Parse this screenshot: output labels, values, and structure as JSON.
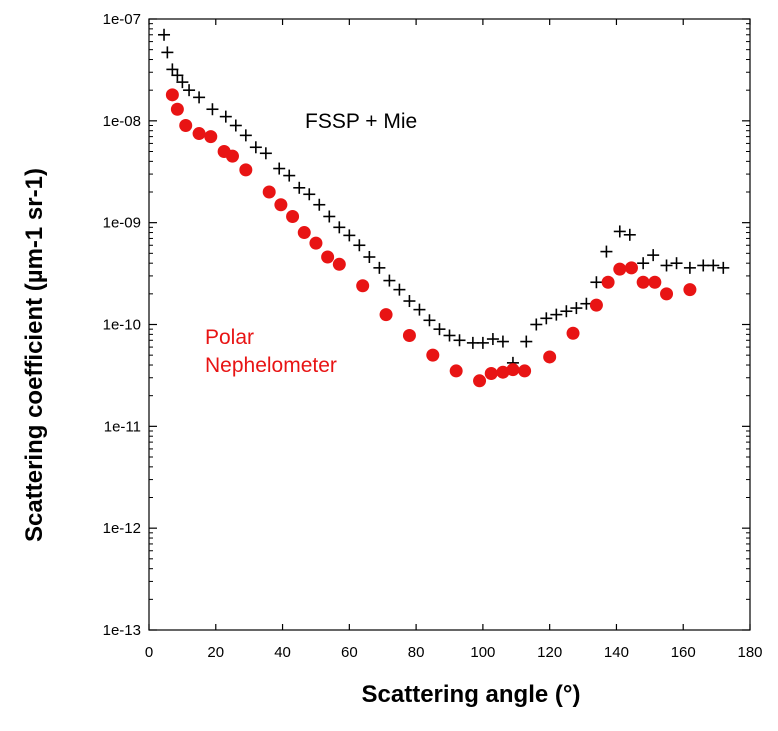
{
  "chart_data": {
    "type": "scatter",
    "xlabel": "Scattering angle (°)",
    "ylabel": "Scattering coefficient (µm-1 sr-1)",
    "xlim": [
      0,
      180
    ],
    "ylim": [
      1e-13,
      1e-07
    ],
    "y_scale": "log",
    "x_ticks": [
      "0",
      "20",
      "40",
      "60",
      "80",
      "100",
      "120",
      "140",
      "160",
      "180"
    ],
    "y_ticks": [
      "1e-13",
      "1e-12",
      "1e-11",
      "1e-10",
      "1e-09",
      "1e-08",
      "1e-07"
    ],
    "grid": false,
    "series": [
      {
        "name": "FSSP + Mie",
        "marker": "plus",
        "color": "#000000",
        "points": [
          [
            4.5,
            7e-08
          ],
          [
            5.5,
            4.7e-08
          ],
          [
            7,
            3.2e-08
          ],
          [
            8.5,
            2.8e-08
          ],
          [
            10,
            2.4e-08
          ],
          [
            12,
            2e-08
          ],
          [
            15,
            1.7e-08
          ],
          [
            19,
            1.3e-08
          ],
          [
            23,
            1.1e-08
          ],
          [
            26,
            9e-09
          ],
          [
            29,
            7.2e-09
          ],
          [
            32,
            5.5e-09
          ],
          [
            35,
            4.8e-09
          ],
          [
            39,
            3.4e-09
          ],
          [
            42,
            2.9e-09
          ],
          [
            45,
            2.2e-09
          ],
          [
            48,
            1.9e-09
          ],
          [
            51,
            1.5e-09
          ],
          [
            54,
            1.15e-09
          ],
          [
            57,
            9e-10
          ],
          [
            60,
            7.5e-10
          ],
          [
            63,
            6e-10
          ],
          [
            66,
            4.6e-10
          ],
          [
            69,
            3.6e-10
          ],
          [
            72,
            2.7e-10
          ],
          [
            75,
            2.2e-10
          ],
          [
            78,
            1.7e-10
          ],
          [
            81,
            1.4e-10
          ],
          [
            84,
            1.1e-10
          ],
          [
            87,
            9e-11
          ],
          [
            90,
            7.8e-11
          ],
          [
            93,
            7e-11
          ],
          [
            97,
            6.6e-11
          ],
          [
            100,
            6.6e-11
          ],
          [
            103,
            7.2e-11
          ],
          [
            106,
            6.8e-11
          ],
          [
            109,
            4.2e-11
          ],
          [
            113,
            6.8e-11
          ],
          [
            116,
            1e-10
          ],
          [
            119,
            1.15e-10
          ],
          [
            122,
            1.25e-10
          ],
          [
            125,
            1.35e-10
          ],
          [
            128,
            1.45e-10
          ],
          [
            131,
            1.6e-10
          ],
          [
            134,
            2.6e-10
          ],
          [
            137,
            5.2e-10
          ],
          [
            141,
            8.2e-10
          ],
          [
            144,
            7.6e-10
          ],
          [
            148,
            4e-10
          ],
          [
            151,
            4.8e-10
          ],
          [
            155,
            3.8e-10
          ],
          [
            158,
            4e-10
          ],
          [
            162,
            3.6e-10
          ],
          [
            166,
            3.8e-10
          ],
          [
            169,
            3.8e-10
          ],
          [
            172,
            3.6e-10
          ]
        ]
      },
      {
        "name": "Polar Nephelometer",
        "marker": "circle",
        "color": "#e81414",
        "points": [
          [
            7,
            1.8e-08
          ],
          [
            8.5,
            1.3e-08
          ],
          [
            11,
            9e-09
          ],
          [
            15,
            7.5e-09
          ],
          [
            18.5,
            7e-09
          ],
          [
            22.5,
            5e-09
          ],
          [
            25,
            4.5e-09
          ],
          [
            29,
            3.3e-09
          ],
          [
            36,
            2e-09
          ],
          [
            39.5,
            1.5e-09
          ],
          [
            43,
            1.15e-09
          ],
          [
            46.5,
            8e-10
          ],
          [
            50,
            6.3e-10
          ],
          [
            53.5,
            4.6e-10
          ],
          [
            57,
            3.9e-10
          ],
          [
            64,
            2.4e-10
          ],
          [
            71,
            1.25e-10
          ],
          [
            78,
            7.8e-11
          ],
          [
            85,
            5e-11
          ],
          [
            92,
            3.5e-11
          ],
          [
            99,
            2.8e-11
          ],
          [
            102.5,
            3.3e-11
          ],
          [
            106,
            3.4e-11
          ],
          [
            109,
            3.6e-11
          ],
          [
            112.5,
            3.5e-11
          ],
          [
            120,
            4.8e-11
          ],
          [
            127,
            8.2e-11
          ],
          [
            134,
            1.55e-10
          ],
          [
            137.5,
            2.6e-10
          ],
          [
            141,
            3.5e-10
          ],
          [
            144.5,
            3.6e-10
          ],
          [
            148,
            2.6e-10
          ],
          [
            151.5,
            2.6e-10
          ],
          [
            155,
            2e-10
          ],
          [
            162,
            2.2e-10
          ]
        ]
      }
    ]
  }
}
